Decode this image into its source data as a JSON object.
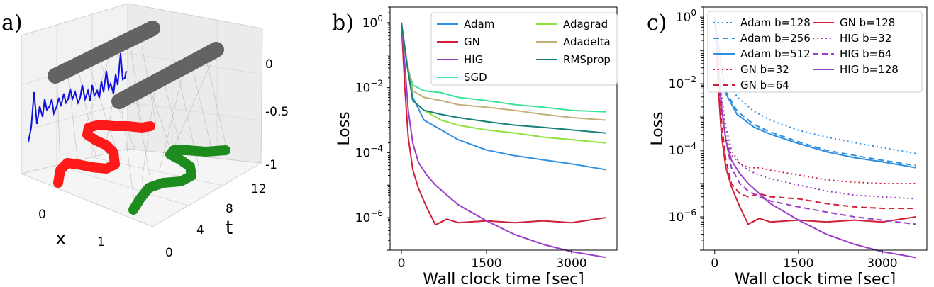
{
  "panels": {
    "a": {
      "label": "a)",
      "x_label": "x",
      "t_label": "t",
      "x_ticks": [
        "0",
        "1"
      ],
      "t_ticks": [
        "0",
        "4",
        "8",
        "12"
      ],
      "z_ticks": [
        "0",
        "-0.5",
        "-1"
      ]
    },
    "b": {
      "label": "b)"
    },
    "c": {
      "label": "c)"
    }
  },
  "chart_data": [
    {
      "panel": "b",
      "type": "line",
      "xlabel": "Wall clock time [sec]",
      "ylabel": "Loss",
      "yscale": "log",
      "xlim": [
        -200,
        3800
      ],
      "ylim": [
        1e-07,
        3
      ],
      "xticks": [
        0,
        1500,
        3000
      ],
      "xtick_labels": [
        "0",
        "1500",
        "3000"
      ],
      "ytick_exponents": [
        0,
        -2,
        -4,
        -6
      ],
      "legend": {
        "placement": "top-right",
        "columns": 2
      },
      "series": [
        {
          "name": "Adam",
          "color": "#2f8fe0",
          "dash": "solid",
          "x": [
            0,
            100,
            200,
            400,
            700,
            1000,
            1500,
            2000,
            2500,
            3000,
            3600
          ],
          "y": [
            1,
            0.05,
            0.005,
            0.001,
            0.0005,
            0.00025,
            0.00012,
            8e-05,
            6e-05,
            4.5e-05,
            3e-05
          ]
        },
        {
          "name": "GN",
          "color": "#d0203a",
          "dash": "solid",
          "x": [
            0,
            60,
            120,
            200,
            300,
            450,
            600,
            800,
            1000,
            1500,
            2000,
            2500,
            3000,
            3600
          ],
          "y": [
            1,
            0.01,
            0.0003,
            3e-05,
            8e-06,
            2e-06,
            6e-07,
            9e-07,
            7e-07,
            8e-07,
            7e-07,
            8e-07,
            7e-07,
            1e-06
          ]
        },
        {
          "name": "HIG",
          "color": "#9a3ec8",
          "dash": "solid",
          "x": [
            0,
            60,
            120,
            200,
            300,
            450,
            600,
            800,
            1000,
            1500,
            2000,
            2500,
            3000,
            3600
          ],
          "y": [
            1,
            0.05,
            0.002,
            0.0002,
            5e-05,
            2e-05,
            1e-05,
            5e-06,
            2.5e-06,
            8e-07,
            3e-07,
            1.5e-07,
            9e-08,
            6e-08
          ]
        },
        {
          "name": "SGD",
          "color": "#3ce29a",
          "dash": "solid",
          "x": [
            0,
            100,
            200,
            400,
            700,
            1000,
            1500,
            2000,
            2500,
            3000,
            3600
          ],
          "y": [
            1,
            0.05,
            0.012,
            0.008,
            0.007,
            0.005,
            0.004,
            0.003,
            0.0025,
            0.002,
            0.0018
          ]
        },
        {
          "name": "Adagrad",
          "color": "#8ee23c",
          "dash": "solid",
          "x": [
            0,
            100,
            200,
            400,
            700,
            1000,
            1500,
            2000,
            2500,
            3000,
            3600
          ],
          "y": [
            1,
            0.05,
            0.004,
            0.002,
            0.001,
            0.0007,
            0.0005,
            0.0004,
            0.0003,
            0.00025,
            0.0002
          ]
        },
        {
          "name": "Adadelta",
          "color": "#c2b078",
          "dash": "solid",
          "x": [
            0,
            100,
            200,
            400,
            700,
            1000,
            1500,
            2000,
            2500,
            3000,
            3600
          ],
          "y": [
            1,
            0.06,
            0.008,
            0.005,
            0.004,
            0.003,
            0.0025,
            0.002,
            0.0015,
            0.0012,
            0.001
          ]
        },
        {
          "name": "RMSprop",
          "color": "#168078",
          "dash": "solid",
          "x": [
            0,
            100,
            200,
            400,
            700,
            1000,
            1500,
            2000,
            2500,
            3000,
            3600
          ],
          "y": [
            1,
            0.05,
            0.004,
            0.002,
            0.0015,
            0.0012,
            0.0009,
            0.0007,
            0.0006,
            0.0005,
            0.0004
          ]
        }
      ]
    },
    {
      "panel": "c",
      "type": "line",
      "xlabel": "Wall clock time [sec]",
      "ylabel": "Loss",
      "yscale": "log",
      "xlim": [
        -200,
        3800
      ],
      "ylim": [
        1e-07,
        2
      ],
      "xticks": [
        0,
        1500,
        3000
      ],
      "xtick_labels": [
        "0",
        "1500",
        "3000"
      ],
      "ytick_exponents": [
        0,
        -2,
        -4,
        -6
      ],
      "legend": {
        "placement": "top-right",
        "columns": 2
      },
      "series": [
        {
          "name": "Adam b=128",
          "color": "#2f8fe0",
          "dash": "dotted",
          "x": [
            0,
            100,
            200,
            400,
            700,
            1000,
            1500,
            2000,
            2500,
            3000,
            3600
          ],
          "y": [
            1,
            0.1,
            0.02,
            0.004,
            0.0015,
            0.0008,
            0.0004,
            0.00025,
            0.00017,
            0.00012,
            8e-05
          ]
        },
        {
          "name": "Adam b=256",
          "color": "#2f8fe0",
          "dash": "dashed",
          "x": [
            0,
            100,
            200,
            400,
            700,
            1000,
            1500,
            2000,
            2500,
            3000,
            3600
          ],
          "y": [
            1,
            0.05,
            0.006,
            0.0015,
            0.0006,
            0.00035,
            0.00018,
            0.0001,
            7e-05,
            5e-05,
            3.5e-05
          ]
        },
        {
          "name": "Adam b=512",
          "color": "#2f8fe0",
          "dash": "solid",
          "x": [
            0,
            100,
            200,
            400,
            700,
            1000,
            1500,
            2000,
            2500,
            3000,
            3600
          ],
          "y": [
            1,
            0.05,
            0.005,
            0.0012,
            0.0005,
            0.0003,
            0.00016,
            9e-05,
            6e-05,
            4.5e-05,
            3e-05
          ]
        },
        {
          "name": "GN b=32",
          "color": "#d0203a",
          "dash": "dotted",
          "x": [
            0,
            60,
            120,
            200,
            300,
            450,
            600,
            800,
            1000,
            1500,
            2000,
            2500,
            3000,
            3600
          ],
          "y": [
            1,
            0.03,
            0.002,
            0.00025,
            7e-05,
            4e-05,
            3e-05,
            3e-05,
            2.5e-05,
            1.8e-05,
            1.3e-05,
            1.1e-05,
            1e-05,
            1e-05
          ]
        },
        {
          "name": "GN b=64",
          "color": "#d0203a",
          "dash": "dashed",
          "x": [
            0,
            60,
            120,
            200,
            300,
            450,
            600,
            800,
            1000,
            1500,
            2000,
            2500,
            3000,
            3600
          ],
          "y": [
            1,
            0.02,
            0.0008,
            5e-05,
            1e-05,
            5e-06,
            4e-06,
            5e-06,
            4e-06,
            3.5e-06,
            2.5e-06,
            2e-06,
            1.8e-06,
            1.8e-06
          ]
        },
        {
          "name": "GN b=128",
          "color": "#d0203a",
          "dash": "solid",
          "x": [
            0,
            60,
            120,
            200,
            300,
            450,
            600,
            800,
            1000,
            1500,
            2000,
            2500,
            3000,
            3600
          ],
          "y": [
            1,
            0.01,
            0.0003,
            3e-05,
            8e-06,
            2e-06,
            6e-07,
            9e-07,
            7e-07,
            8e-07,
            7e-07,
            8e-07,
            7e-07,
            1e-06
          ]
        },
        {
          "name": "HIG b=32",
          "color": "#9a3ec8",
          "dash": "dotted",
          "x": [
            0,
            60,
            120,
            200,
            300,
            450,
            600,
            800,
            1000,
            1500,
            2000,
            2500,
            3000,
            3600
          ],
          "y": [
            1,
            0.05,
            0.005,
            0.0005,
            0.0001,
            4e-05,
            2.5e-05,
            1.8e-05,
            1.4e-05,
            9e-06,
            6e-06,
            4.5e-06,
            4e-06,
            3.5e-06
          ]
        },
        {
          "name": "HIG b=64",
          "color": "#9a3ec8",
          "dash": "dashed",
          "x": [
            0,
            60,
            120,
            200,
            300,
            450,
            600,
            800,
            1000,
            1500,
            2000,
            2500,
            3000,
            3600
          ],
          "y": [
            1,
            0.05,
            0.003,
            0.0002,
            3e-05,
            1e-05,
            6e-06,
            4e-06,
            3e-06,
            2e-06,
            1.4e-06,
            1e-06,
            8e-07,
            6e-07
          ]
        },
        {
          "name": "HIG b=128",
          "color": "#9a3ec8",
          "dash": "solid",
          "x": [
            0,
            60,
            120,
            200,
            300,
            450,
            600,
            800,
            1000,
            1500,
            2000,
            2500,
            3000,
            3600
          ],
          "y": [
            1,
            0.05,
            0.002,
            0.0002,
            5e-05,
            2e-05,
            1e-05,
            5e-06,
            2.5e-06,
            8e-07,
            3e-07,
            1.5e-07,
            9e-08,
            6e-08
          ]
        }
      ]
    }
  ]
}
